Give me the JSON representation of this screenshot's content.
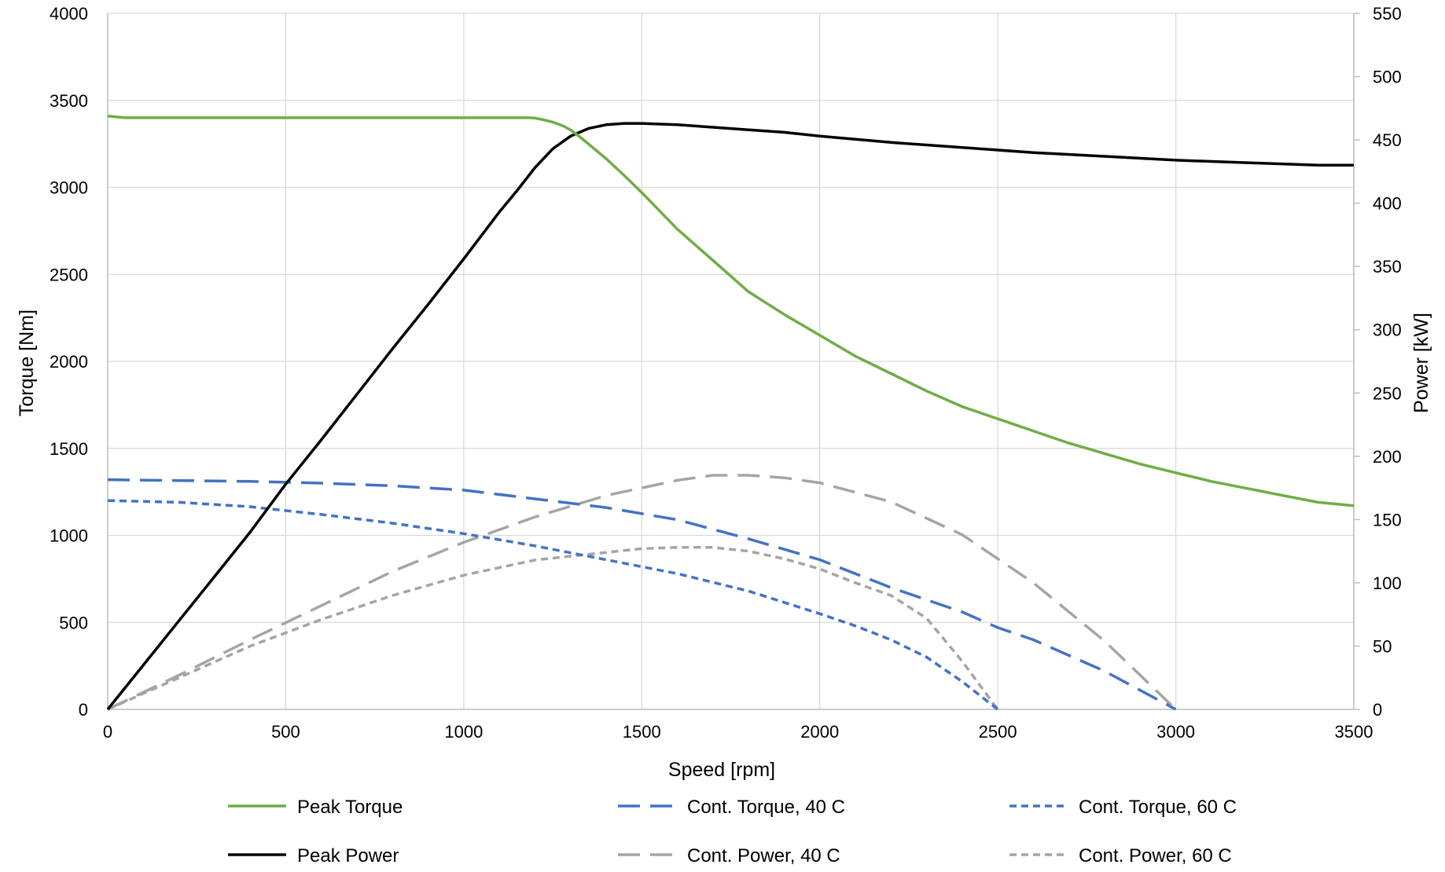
{
  "chart_data": {
    "type": "line",
    "title": "",
    "xlabel": "Speed [rpm]",
    "ylabel": "Torque [Nm]",
    "y2label": "Power [kW]",
    "xlim": [
      0,
      3500
    ],
    "ylim": [
      0,
      4000
    ],
    "y2lim": [
      0,
      550
    ],
    "xticks": [
      0,
      500,
      1000,
      1500,
      2000,
      2500,
      3000,
      3500
    ],
    "yticks": [
      0,
      500,
      1000,
      1500,
      2000,
      2500,
      3000,
      3500,
      4000
    ],
    "y2ticks": [
      0,
      50,
      100,
      150,
      200,
      250,
      300,
      350,
      400,
      450,
      500,
      550
    ],
    "grid": true,
    "legend_position": "bottom",
    "series": [
      {
        "name": "Peak Torque",
        "axis": "left",
        "color": "#70ad47",
        "dash": "solid",
        "x": [
          0,
          50,
          100,
          200,
          400,
          600,
          800,
          1000,
          1100,
          1180,
          1200,
          1220,
          1250,
          1280,
          1300,
          1320,
          1350,
          1400,
          1450,
          1500,
          1600,
          1700,
          1800,
          1900,
          2000,
          2100,
          2200,
          2300,
          2400,
          2500,
          2600,
          2700,
          2800,
          2900,
          3000,
          3100,
          3200,
          3300,
          3400,
          3500
        ],
        "y": [
          3410,
          3400,
          3400,
          3400,
          3400,
          3400,
          3400,
          3400,
          3400,
          3400,
          3398,
          3390,
          3375,
          3352,
          3330,
          3300,
          3250,
          3165,
          3070,
          2970,
          2760,
          2580,
          2400,
          2270,
          2150,
          2030,
          1930,
          1830,
          1740,
          1670,
          1600,
          1530,
          1470,
          1410,
          1360,
          1310,
          1270,
          1230,
          1190,
          1170
        ]
      },
      {
        "name": "Peak Power",
        "axis": "right",
        "color": "#000000",
        "dash": "solid",
        "x": [
          0,
          100,
          200,
          300,
          400,
          500,
          600,
          700,
          800,
          900,
          1000,
          1100,
          1150,
          1200,
          1250,
          1300,
          1350,
          1400,
          1450,
          1500,
          1600,
          1700,
          1800,
          1900,
          2000,
          2200,
          2400,
          2600,
          2800,
          3000,
          3200,
          3400,
          3500
        ],
        "y": [
          0,
          35,
          70,
          105,
          140,
          178,
          213,
          249,
          285,
          320,
          356,
          393,
          410,
          428,
          443,
          453,
          459,
          462,
          463,
          463,
          462,
          460,
          458,
          456,
          453,
          448,
          444,
          440,
          437,
          434,
          432,
          430,
          430
        ]
      },
      {
        "name": "Cont. Torque, 40 C",
        "axis": "left",
        "color": "#4472c4",
        "dash": "long",
        "x": [
          0,
          200,
          400,
          600,
          800,
          1000,
          1200,
          1400,
          1600,
          1800,
          2000,
          2200,
          2400,
          2500,
          2600,
          2800,
          3000
        ],
        "y": [
          1320,
          1315,
          1310,
          1300,
          1285,
          1260,
          1210,
          1160,
          1090,
          980,
          860,
          700,
          560,
          470,
          400,
          220,
          0
        ]
      },
      {
        "name": "Cont. Torque, 60 C",
        "axis": "left",
        "color": "#4472c4",
        "dash": "short",
        "x": [
          0,
          200,
          400,
          600,
          800,
          1000,
          1200,
          1400,
          1600,
          1800,
          2000,
          2100,
          2200,
          2300,
          2400,
          2500
        ],
        "y": [
          1200,
          1190,
          1165,
          1120,
          1070,
          1010,
          940,
          860,
          780,
          680,
          550,
          480,
          400,
          300,
          160,
          0
        ]
      },
      {
        "name": "Cont. Power, 40 C",
        "axis": "right",
        "color": "#a5a5a5",
        "dash": "long",
        "x": [
          0,
          200,
          400,
          600,
          800,
          1000,
          1200,
          1400,
          1600,
          1700,
          1800,
          1900,
          2000,
          2200,
          2400,
          2600,
          2800,
          3000
        ],
        "y": [
          0,
          27,
          55,
          82,
          109,
          132,
          152,
          169,
          181,
          185,
          185,
          183,
          179,
          164,
          138,
          100,
          54,
          0
        ]
      },
      {
        "name": "Cont. Power, 60 C",
        "axis": "right",
        "color": "#a5a5a5",
        "dash": "short",
        "x": [
          0,
          200,
          400,
          600,
          800,
          1000,
          1200,
          1400,
          1500,
          1600,
          1700,
          1800,
          1900,
          2000,
          2100,
          2200,
          2300,
          2400,
          2500
        ],
        "y": [
          0,
          25,
          50,
          71,
          90,
          106,
          118,
          124,
          127,
          128,
          128,
          125,
          119,
          111,
          100,
          90,
          72,
          38,
          0
        ]
      }
    ]
  },
  "legend": {
    "items": [
      {
        "label": "Peak Torque",
        "color": "#70ad47",
        "dash": "solid"
      },
      {
        "label": "Cont. Torque, 40 C",
        "color": "#4472c4",
        "dash": "long"
      },
      {
        "label": "Cont. Torque, 60 C",
        "color": "#4472c4",
        "dash": "short"
      },
      {
        "label": "Peak Power",
        "color": "#000000",
        "dash": "solid"
      },
      {
        "label": "Cont. Power, 40 C",
        "color": "#a5a5a5",
        "dash": "long"
      },
      {
        "label": "Cont. Power, 60 C",
        "color": "#a5a5a5",
        "dash": "short"
      }
    ]
  }
}
